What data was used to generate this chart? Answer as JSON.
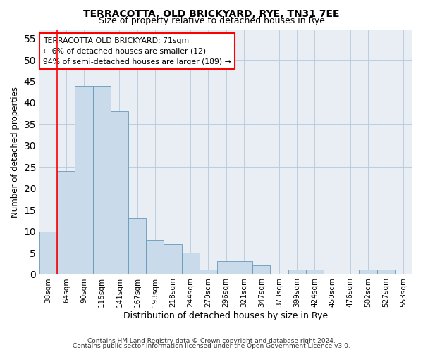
{
  "title1": "TERRACOTTA, OLD BRICKYARD, RYE, TN31 7EE",
  "title2": "Size of property relative to detached houses in Rye",
  "xlabel": "Distribution of detached houses by size in Rye",
  "ylabel": "Number of detached properties",
  "categories": [
    "38sqm",
    "64sqm",
    "90sqm",
    "115sqm",
    "141sqm",
    "167sqm",
    "193sqm",
    "218sqm",
    "244sqm",
    "270sqm",
    "296sqm",
    "321sqm",
    "347sqm",
    "373sqm",
    "399sqm",
    "424sqm",
    "450sqm",
    "476sqm",
    "502sqm",
    "527sqm",
    "553sqm"
  ],
  "values": [
    10,
    24,
    44,
    44,
    38,
    13,
    8,
    7,
    5,
    1,
    3,
    3,
    2,
    0,
    1,
    1,
    0,
    0,
    1,
    1,
    0
  ],
  "bar_color": "#c9daea",
  "bar_edge_color": "#6699bb",
  "annotation_title": "TERRACOTTA OLD BRICKYARD: 71sqm",
  "annotation_line1": "← 6% of detached houses are smaller (12)",
  "annotation_line2": "94% of semi-detached houses are larger (189) →",
  "ylim": [
    0,
    57
  ],
  "yticks": [
    0,
    5,
    10,
    15,
    20,
    25,
    30,
    35,
    40,
    45,
    50,
    55
  ],
  "footer1": "Contains HM Land Registry data © Crown copyright and database right 2024.",
  "footer2": "Contains public sector information licensed under the Open Government Licence v3.0.",
  "bg_color": "#ffffff",
  "plot_bg_color": "#e8eef4"
}
